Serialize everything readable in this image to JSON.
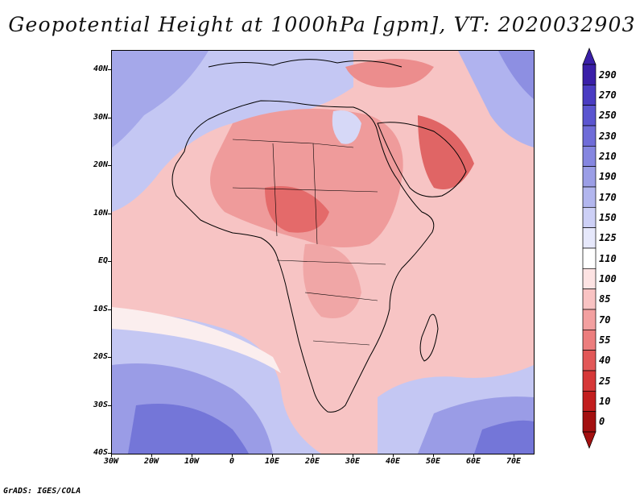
{
  "title": "Geopotential Height at 1000hPa [gpm], VT: 2020032903",
  "credit": "GrADS: IGES/COLA",
  "axes": {
    "lat_labels": [
      "40N",
      "30N",
      "20N",
      "10N",
      "EQ",
      "10S",
      "20S",
      "30S",
      "40S"
    ],
    "lon_labels": [
      "30W",
      "20W",
      "10W",
      "0",
      "10E",
      "20E",
      "30E",
      "40E",
      "50E",
      "60E",
      "70E"
    ]
  },
  "colorbar": {
    "labels": [
      "290",
      "270",
      "250",
      "230",
      "210",
      "190",
      "170",
      "150",
      "125",
      "110",
      "100",
      "85",
      "70",
      "55",
      "40",
      "25",
      "10",
      "0"
    ],
    "colors": [
      "#3a1fa8",
      "#4a3cc2",
      "#5b55d0",
      "#6f6cd8",
      "#8586e0",
      "#9b9ee6",
      "#b2b6ee",
      "#cdd0f6",
      "#e6e8fb",
      "#ffffff",
      "#fde3e3",
      "#f9c3c3",
      "#f3a0a0",
      "#ec7d7d",
      "#e25858",
      "#d63838",
      "#c21e1e",
      "#a31010"
    ]
  },
  "map_colors": {
    "ocean_blue": "#8d8fe2",
    "ocean_light": "#c9ccf4",
    "land_pink": "#f5b6b6",
    "land_red": "#e87d7d",
    "land_deep": "#d85050"
  }
}
